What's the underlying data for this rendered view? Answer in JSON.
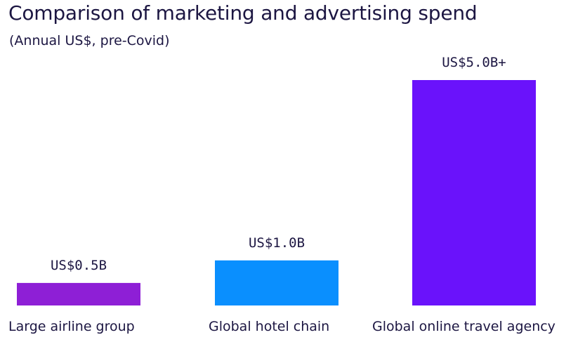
{
  "chart_data": {
    "type": "bar",
    "title": "Comparison of marketing and advertising spend",
    "subtitle": "(Annual US$, pre-Covid)",
    "xlabel": "",
    "ylabel": "",
    "categories": [
      "Large airline group",
      "Global hotel chain",
      "Global online travel agency"
    ],
    "values": [
      0.5,
      1.0,
      5.0
    ],
    "value_labels": [
      "US$0.5B",
      "US$1.0B",
      "US$5.0B+"
    ],
    "colors": [
      "#8e1fd6",
      "#0a8ffe",
      "#6a12fb"
    ],
    "unit": "US$ billions",
    "ylim": [
      0,
      5.0
    ],
    "grid": false,
    "legend": "none"
  }
}
